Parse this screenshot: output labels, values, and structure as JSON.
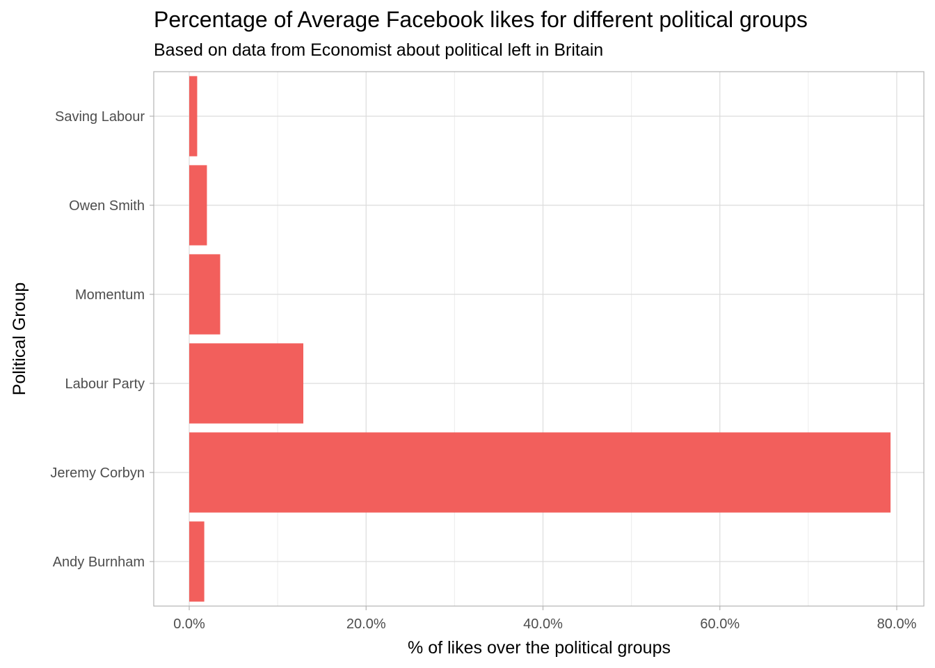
{
  "chart_data": {
    "type": "bar",
    "orientation": "horizontal",
    "title": "Percentage of Average Facebook likes for different political groups",
    "subtitle": "Based on data from Economist about political left in Britain",
    "xlabel": "% of likes over the political groups",
    "ylabel": "Political Group",
    "categories": [
      "Saving Labour",
      "Owen Smith",
      "Momentum",
      "Labour Party",
      "Jeremy Corbyn",
      "Andy Burnham"
    ],
    "values": [
      0.9,
      2.0,
      3.5,
      12.9,
      79.3,
      1.7
    ],
    "xlim": [
      -4,
      83
    ],
    "xticks": [
      0,
      20,
      40,
      60,
      80
    ],
    "xtick_labels": [
      "0.0%",
      "20.0%",
      "40.0%",
      "60.0%",
      "80.0%"
    ],
    "grid": true,
    "bar_color": "#F25F5C"
  }
}
